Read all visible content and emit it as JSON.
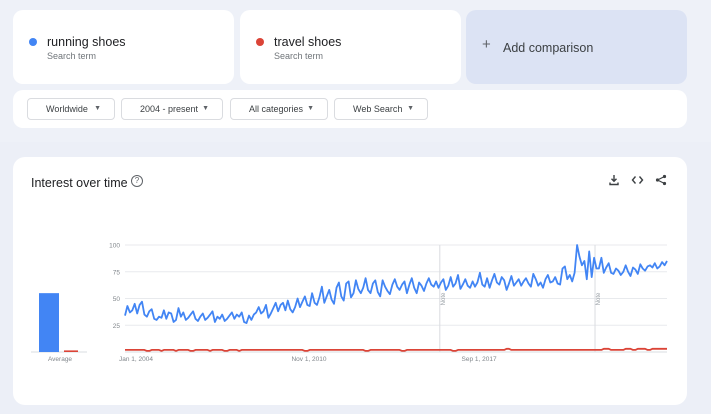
{
  "terms": [
    {
      "name": "running shoes",
      "sub": "Search term",
      "color": "#4285f4"
    },
    {
      "name": "travel shoes",
      "sub": "Search term",
      "color": "#db4437"
    }
  ],
  "add_comparison": {
    "label": "Add comparison",
    "icon": "plus-icon"
  },
  "filters": [
    {
      "label": "Worldwide"
    },
    {
      "label": "2004 - present"
    },
    {
      "label": "All categories"
    },
    {
      "label": "Web Search"
    }
  ],
  "panel": {
    "title": "Interest over time",
    "tools": [
      "download-icon",
      "embed-icon",
      "share-icon"
    ]
  },
  "chart_data": {
    "type": "line",
    "title": "",
    "xlabel": "",
    "ylabel": "",
    "ylim": [
      0,
      100
    ],
    "yticks": [
      "100",
      "75",
      "50",
      "25"
    ],
    "xticks": [
      {
        "x": 0,
        "label": "Jan 1, 2004"
      },
      {
        "x": 0.3395,
        "label": "Nov 1, 2010"
      },
      {
        "x": 0.6533,
        "label": "Sep 1, 2017"
      }
    ],
    "notes": [
      {
        "x": 0.5808,
        "label": "Note"
      },
      {
        "x": 0.8672,
        "label": "Note"
      }
    ],
    "average": {
      "label": "Average",
      "values": [
        55,
        1.5
      ]
    },
    "series": [
      {
        "name": "running shoes",
        "color": "#4285f4",
        "values": [
          34,
          43,
          37,
          39,
          45,
          36,
          44,
          47,
          35,
          33,
          38,
          40,
          31,
          30,
          33,
          32,
          39,
          31,
          37,
          36,
          28,
          30,
          41,
          33,
          37,
          30,
          32,
          35,
          38,
          31,
          29,
          33,
          36,
          30,
          32,
          35,
          38,
          28,
          33,
          31,
          35,
          29,
          31,
          34,
          37,
          31,
          35,
          33,
          37,
          28,
          27,
          34,
          30,
          35,
          37,
          42,
          36,
          38,
          44,
          32,
          36,
          41,
          46,
          38,
          44,
          46,
          39,
          48,
          40,
          37,
          42,
          50,
          42,
          47,
          52,
          44,
          43,
          55,
          46,
          44,
          51,
          61,
          46,
          52,
          58,
          49,
          45,
          60,
          65,
          52,
          48,
          64,
          66,
          51,
          55,
          67,
          59,
          55,
          60,
          69,
          58,
          55,
          64,
          67,
          56,
          52,
          67,
          61,
          57,
          54,
          63,
          68,
          61,
          58,
          63,
          66,
          55,
          63,
          69,
          60,
          55,
          65,
          62,
          57,
          64,
          69,
          63,
          61,
          66,
          60,
          65,
          68,
          58,
          62,
          70,
          61,
          64,
          72,
          59,
          63,
          68,
          62,
          60,
          66,
          61,
          65,
          74,
          63,
          61,
          69,
          60,
          67,
          73,
          65,
          63,
          70,
          67,
          58,
          64,
          71,
          62,
          65,
          68,
          62,
          66,
          69,
          64,
          61,
          73,
          68,
          62,
          65,
          60,
          68,
          72,
          65,
          66,
          70,
          64,
          63,
          78,
          80,
          68,
          72,
          66,
          74,
          100,
          89,
          81,
          85,
          68,
          94,
          70,
          88,
          78,
          78,
          88,
          74,
          79,
          83,
          74,
          73,
          78,
          76,
          72,
          75,
          81,
          75,
          71,
          79,
          77,
          73,
          82,
          78,
          76,
          80,
          81,
          79,
          83,
          78,
          80,
          84,
          81,
          85
        ]
      },
      {
        "name": "travel shoes",
        "color": "#db4437",
        "values": [
          2,
          2,
          2,
          2,
          2,
          2,
          2,
          2,
          2,
          1,
          1,
          2,
          2,
          2,
          2,
          1,
          2,
          2,
          2,
          2,
          2,
          1,
          2,
          2,
          2,
          2,
          2,
          1,
          1,
          2,
          2,
          2,
          2,
          2,
          2,
          1,
          2,
          2,
          2,
          2,
          2,
          1,
          1,
          2,
          2,
          2,
          2,
          1,
          2,
          2,
          2,
          2,
          2,
          2,
          2,
          2,
          2,
          2,
          2,
          2,
          2,
          2,
          2,
          2,
          2,
          2,
          2,
          2,
          2,
          2,
          2,
          2,
          2,
          2,
          1,
          1,
          2,
          2,
          2,
          2,
          2,
          2,
          2,
          2,
          2,
          2,
          2,
          2,
          2,
          2,
          2,
          2,
          2,
          2,
          2,
          2,
          2,
          2,
          2,
          1,
          1,
          2,
          2,
          2,
          2,
          2,
          2,
          2,
          2,
          2,
          2,
          2,
          2,
          2,
          1,
          1,
          2,
          2,
          2,
          2,
          2,
          2,
          2,
          2,
          2,
          2,
          2,
          2,
          2,
          2,
          2,
          2,
          2,
          2,
          2,
          1,
          1,
          2,
          2,
          2,
          2,
          2,
          2,
          2,
          2,
          2,
          2,
          2,
          2,
          2,
          2,
          2,
          2,
          2,
          2,
          2,
          2,
          3,
          3,
          2,
          2,
          2,
          2,
          2,
          2,
          2,
          2,
          2,
          2,
          2,
          2,
          2,
          2,
          2,
          2,
          2,
          2,
          2,
          2,
          2,
          2,
          2,
          2,
          2,
          2,
          2,
          2,
          2,
          2,
          2,
          2,
          2,
          2,
          2,
          2,
          2,
          2,
          3,
          3,
          3,
          2,
          2,
          2,
          2,
          2,
          2,
          3,
          3,
          3,
          2,
          2,
          3,
          3,
          3,
          3,
          2,
          2,
          3,
          3,
          3,
          3,
          3,
          3,
          3
        ]
      }
    ]
  }
}
